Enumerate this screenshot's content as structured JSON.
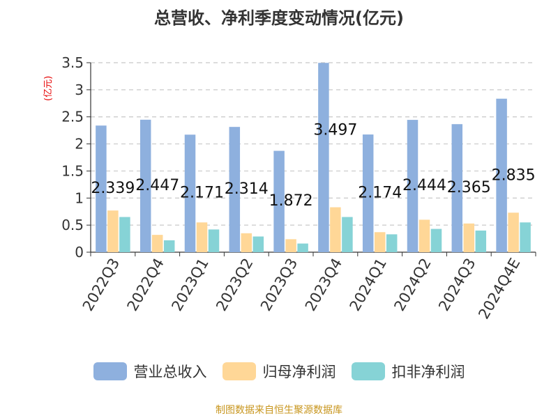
{
  "chart_data": {
    "type": "bar",
    "title": "总营收、净利季度变动情况(亿元)",
    "ylabel": "(亿元)",
    "ylim": [
      0,
      3.5
    ],
    "yticks": [
      "0",
      "0.5",
      "1",
      "1.5",
      "2",
      "2.5",
      "3",
      "3.5"
    ],
    "grid": true,
    "legend_position": "bottom",
    "categories": [
      "2022Q3",
      "2022Q4",
      "2023Q1",
      "2023Q2",
      "2023Q3",
      "2023Q4",
      "2024Q1",
      "2024Q2",
      "2024Q3",
      "2024Q4E"
    ],
    "series": [
      {
        "name": "营业总收入",
        "color": "#8eb0de",
        "values": [
          2.339,
          2.447,
          2.171,
          2.314,
          1.872,
          3.497,
          2.174,
          2.444,
          2.365,
          2.835
        ],
        "labels": [
          "2.339",
          "2.447",
          "2.171",
          "2.314",
          "1.872",
          "3.497",
          "2.174",
          "2.444",
          "2.365",
          "2.835"
        ]
      },
      {
        "name": "归母净利润",
        "color": "#ffd797",
        "values": [
          0.77,
          0.32,
          0.55,
          0.35,
          0.24,
          0.83,
          0.37,
          0.6,
          0.53,
          0.73
        ]
      },
      {
        "name": "扣非净利润",
        "color": "#86d3d6",
        "values": [
          0.65,
          0.22,
          0.42,
          0.29,
          0.16,
          0.65,
          0.33,
          0.43,
          0.4,
          0.55
        ]
      }
    ]
  },
  "source_text": "制图数据来自恒生聚源数据库"
}
